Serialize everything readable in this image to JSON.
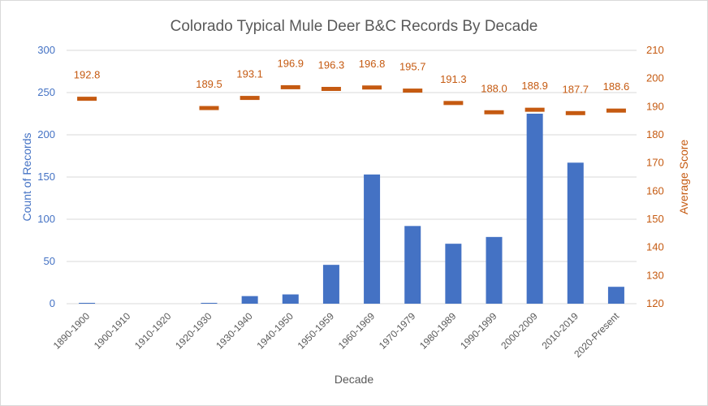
{
  "chart_data": {
    "type": "bar",
    "title": "Colorado Typical Mule Deer B&C Records By Decade",
    "xlabel": "Decade",
    "ylabel": "Count of Records",
    "y2label": "Average Score",
    "ylim": [
      0,
      300
    ],
    "y2lim": [
      120,
      210
    ],
    "yticks": [
      "0",
      "50",
      "100",
      "150",
      "200",
      "250",
      "300"
    ],
    "y2ticks": [
      "120",
      "130",
      "140",
      "150",
      "160",
      "170",
      "180",
      "190",
      "200",
      "210"
    ],
    "grid": true,
    "categories": [
      "1890-1900",
      "1900-1910",
      "1910-1920",
      "1920-1930",
      "1930-1940",
      "1940-1950",
      "1950-1959",
      "1960-1969",
      "1970-1979",
      "1980-1989",
      "1990-1999",
      "2000-2009",
      "2010-2019",
      "2020-Present"
    ],
    "series": [
      {
        "type": "bar",
        "axis": "left",
        "color": "#4472c4",
        "values": [
          1,
          0,
          0,
          1,
          9,
          11,
          46,
          153,
          92,
          71,
          79,
          225,
          167,
          20
        ]
      },
      {
        "type": "marker",
        "axis": "right",
        "color": "#c55a11",
        "values": [
          192.8,
          null,
          null,
          189.5,
          193.1,
          196.9,
          196.3,
          196.8,
          195.7,
          191.3,
          188.0,
          188.9,
          187.7,
          188.6
        ],
        "labels": [
          "192.8",
          "",
          "",
          "189.5",
          "193.1",
          "196.9",
          "196.3",
          "196.8",
          "195.7",
          "191.3",
          "188.0",
          "188.9",
          "187.7",
          "188.6"
        ]
      }
    ]
  }
}
